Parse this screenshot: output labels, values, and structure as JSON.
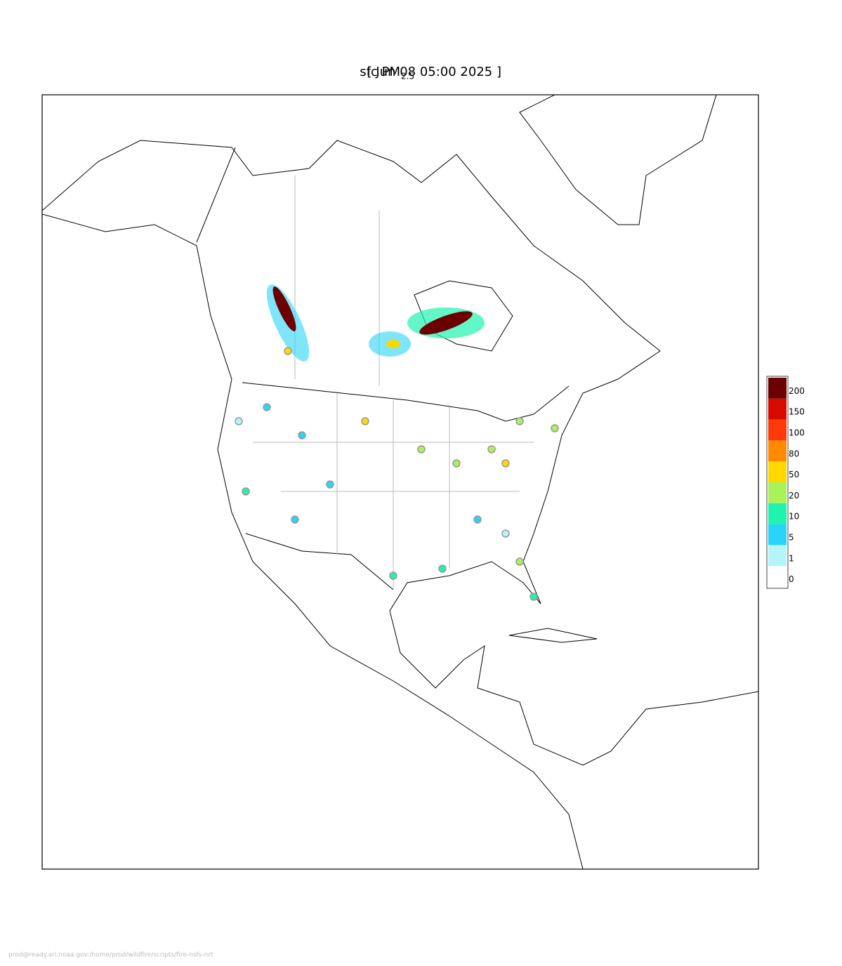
{
  "title": {
    "main": "sfc PM",
    "subscript": "2.5",
    "time": "[ Jun 08 05:00 2025 ]"
  },
  "colorbar": {
    "labels": [
      0,
      1,
      5,
      10,
      20,
      50,
      80,
      100,
      150,
      200
    ],
    "colors": [
      "#ffffff",
      "#b4f5fa",
      "#2ad4f8",
      "#20f2b0",
      "#a8f25a",
      "#ffd800",
      "#ff8a00",
      "#ff3a0a",
      "#d80a00",
      "#6a0000"
    ]
  },
  "footer": "prod@ready.arl.noaa.gov:/home/prod/wildfire/scripts/fire-nsfs-nrt"
}
